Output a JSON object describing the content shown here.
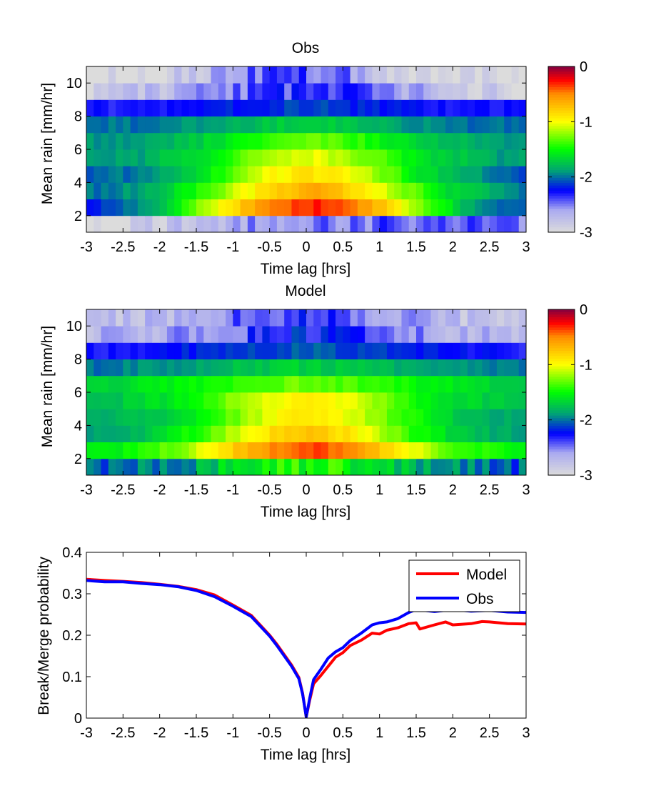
{
  "chart_data": [
    {
      "type": "heatmap",
      "title": "Obs",
      "xlabel": "Time lag [hrs]",
      "ylabel": "Mean rain [mm/hr]",
      "xlim": [
        -3,
        3
      ],
      "ylim": [
        1,
        11
      ],
      "xticks": [
        "-3",
        "-2.5",
        "-2",
        "-1.5",
        "-1",
        "-0.5",
        "0",
        "0.5",
        "1",
        "1.5",
        "2",
        "2.5",
        "3"
      ],
      "yticks": [
        "2",
        "4",
        "6",
        "8",
        "10"
      ],
      "row_centers": [
        1.5,
        2.5,
        3.5,
        4.5,
        5.5,
        6.5,
        7.5,
        8.5,
        9.5,
        10.5
      ],
      "column_count": 60,
      "row_values": [
        [
          -3.0,
          -3.0,
          -2.9,
          -2.8,
          -2.8,
          -2.7,
          -2.7,
          -2.6,
          -2.6,
          -2.6,
          -2.5,
          -2.5,
          -2.5,
          -2.4,
          -2.4,
          -2.4,
          -2.4,
          -2.5,
          -2.5,
          -2.5
        ],
        [
          -2.2,
          -2.1,
          -2.0,
          -1.8,
          -1.5,
          -1.2,
          -0.9,
          -0.7,
          -0.5,
          -0.35,
          -0.3,
          -0.4,
          -0.55,
          -0.8,
          -1.1,
          -1.4,
          -1.7,
          -1.9,
          -2.0,
          -2.1
        ],
        [
          -2.0,
          -2.0,
          -1.9,
          -1.8,
          -1.6,
          -1.4,
          -1.2,
          -1.0,
          -0.8,
          -0.7,
          -0.65,
          -0.75,
          -0.9,
          -1.1,
          -1.3,
          -1.5,
          -1.7,
          -1.8,
          -1.9,
          -2.0
        ],
        [
          -2.1,
          -2.0,
          -2.0,
          -1.9,
          -1.8,
          -1.6,
          -1.4,
          -1.2,
          -1.0,
          -0.9,
          -0.9,
          -0.95,
          -1.1,
          -1.3,
          -1.5,
          -1.7,
          -1.8,
          -1.9,
          -2.0,
          -2.1
        ],
        [
          -1.9,
          -1.9,
          -1.9,
          -1.8,
          -1.7,
          -1.6,
          -1.5,
          -1.3,
          -1.2,
          -1.1,
          -1.05,
          -1.15,
          -1.25,
          -1.4,
          -1.55,
          -1.65,
          -1.75,
          -1.8,
          -1.9,
          -1.9
        ],
        [
          -1.9,
          -1.9,
          -1.9,
          -1.85,
          -1.8,
          -1.7,
          -1.6,
          -1.5,
          -1.4,
          -1.3,
          -1.3,
          -1.35,
          -1.45,
          -1.55,
          -1.65,
          -1.75,
          -1.8,
          -1.85,
          -1.9,
          -1.9
        ],
        [
          -2.0,
          -2.0,
          -2.0,
          -2.0,
          -1.95,
          -1.9,
          -1.85,
          -1.8,
          -1.75,
          -1.7,
          -1.7,
          -1.75,
          -1.8,
          -1.85,
          -1.9,
          -1.95,
          -2.0,
          -2.0,
          -2.0,
          -2.0
        ],
        [
          -2.3,
          -2.3,
          -2.3,
          -2.3,
          -2.3,
          -2.25,
          -2.2,
          -2.2,
          -2.15,
          -2.1,
          -2.1,
          -2.15,
          -2.2,
          -2.2,
          -2.25,
          -2.3,
          -2.3,
          -2.3,
          -2.3,
          -2.3
        ],
        [
          -2.9,
          -2.85,
          -2.8,
          -2.75,
          -2.7,
          -2.6,
          -2.5,
          -2.45,
          -2.4,
          -2.35,
          -2.35,
          -2.4,
          -2.45,
          -2.55,
          -2.65,
          -2.75,
          -2.8,
          -2.85,
          -2.9,
          -2.95
        ],
        [
          -3.0,
          -3.0,
          -2.95,
          -2.9,
          -2.85,
          -2.75,
          -2.6,
          -2.5,
          -2.45,
          -2.4,
          -2.45,
          -2.5,
          -2.6,
          -2.85,
          -3.0,
          -3.0,
          -3.0,
          -3.0,
          -3.0,
          -3.0
        ]
      ],
      "colorbar": {
        "min": -3,
        "max": 0,
        "ticks": [
          "0",
          "-1",
          "-2",
          "-3"
        ]
      }
    },
    {
      "type": "heatmap",
      "title": "Model",
      "xlabel": "Time lag [hrs]",
      "ylabel": "Mean rain [mm/hr]",
      "xlim": [
        -3,
        3
      ],
      "ylim": [
        1,
        11
      ],
      "xticks": [
        "-3",
        "-2.5",
        "-2",
        "-1.5",
        "-1",
        "-0.5",
        "0",
        "0.5",
        "1",
        "1.5",
        "2",
        "2.5",
        "3"
      ],
      "yticks": [
        "2",
        "4",
        "6",
        "8",
        "10"
      ],
      "row_centers": [
        1.5,
        2.5,
        3.5,
        4.5,
        5.5,
        6.5,
        7.5,
        8.5,
        9.5,
        10.5
      ],
      "column_count": 60,
      "row_values": [
        [
          -2.1,
          -2.1,
          -2.0,
          -1.95,
          -1.9,
          -1.8,
          -1.7,
          -1.6,
          -1.5,
          -1.45,
          -1.45,
          -1.5,
          -1.6,
          -1.7,
          -1.8,
          -1.9,
          -1.95,
          -2.0,
          -2.05,
          -2.1
        ],
        [
          -1.6,
          -1.55,
          -1.5,
          -1.4,
          -1.25,
          -1.05,
          -0.85,
          -0.65,
          -0.5,
          -0.4,
          -0.38,
          -0.45,
          -0.6,
          -0.8,
          -1.0,
          -1.2,
          -1.35,
          -1.45,
          -1.5,
          -1.55
        ],
        [
          -1.9,
          -1.85,
          -1.8,
          -1.7,
          -1.55,
          -1.4,
          -1.2,
          -1.0,
          -0.85,
          -0.75,
          -0.75,
          -0.85,
          -1.0,
          -1.2,
          -1.4,
          -1.55,
          -1.7,
          -1.8,
          -1.85,
          -1.9
        ],
        [
          -1.9,
          -1.85,
          -1.8,
          -1.75,
          -1.65,
          -1.5,
          -1.35,
          -1.2,
          -1.05,
          -0.95,
          -0.95,
          -1.0,
          -1.15,
          -1.3,
          -1.45,
          -1.6,
          -1.7,
          -1.8,
          -1.85,
          -1.9
        ],
        [
          -1.8,
          -1.75,
          -1.7,
          -1.65,
          -1.55,
          -1.45,
          -1.3,
          -1.15,
          -1.0,
          -0.95,
          -0.95,
          -1.0,
          -1.15,
          -1.3,
          -1.45,
          -1.55,
          -1.65,
          -1.7,
          -1.75,
          -1.8
        ],
        [
          -1.7,
          -1.7,
          -1.65,
          -1.6,
          -1.55,
          -1.5,
          -1.45,
          -1.4,
          -1.35,
          -1.3,
          -1.3,
          -1.35,
          -1.4,
          -1.45,
          -1.5,
          -1.55,
          -1.6,
          -1.65,
          -1.7,
          -1.7
        ],
        [
          -2.0,
          -2.0,
          -1.95,
          -1.95,
          -1.9,
          -1.85,
          -1.8,
          -1.75,
          -1.75,
          -1.7,
          -1.7,
          -1.75,
          -1.75,
          -1.8,
          -1.85,
          -1.9,
          -1.95,
          -1.95,
          -2.0,
          -2.0
        ],
        [
          -2.3,
          -2.3,
          -2.25,
          -2.25,
          -2.2,
          -2.2,
          -2.15,
          -2.1,
          -2.1,
          -2.05,
          -2.05,
          -2.1,
          -2.1,
          -2.15,
          -2.2,
          -2.2,
          -2.25,
          -2.25,
          -2.3,
          -2.3
        ],
        [
          -2.75,
          -2.7,
          -2.7,
          -2.65,
          -2.6,
          -2.55,
          -2.45,
          -2.4,
          -2.3,
          -2.25,
          -2.25,
          -2.3,
          -2.4,
          -2.45,
          -2.55,
          -2.6,
          -2.65,
          -2.7,
          -2.7,
          -2.75
        ],
        [
          -2.85,
          -2.8,
          -2.75,
          -2.7,
          -2.65,
          -2.6,
          -2.5,
          -2.45,
          -2.4,
          -2.35,
          -2.35,
          -2.4,
          -2.45,
          -2.55,
          -2.6,
          -2.7,
          -2.75,
          -2.8,
          -2.85,
          -2.9
        ]
      ],
      "colorbar": {
        "min": -3,
        "max": 0,
        "ticks": [
          "0",
          "-1",
          "-2",
          "-3"
        ]
      }
    },
    {
      "type": "line",
      "title": "",
      "xlabel": "Time lag [hrs]",
      "ylabel": "Break/Merge probability",
      "xlim": [
        -3,
        3
      ],
      "ylim": [
        0,
        0.4
      ],
      "xticks": [
        "-3",
        "-2.5",
        "-2",
        "-1.5",
        "-1",
        "-0.5",
        "0",
        "0.5",
        "1",
        "1.5",
        "2",
        "2.5",
        "3"
      ],
      "yticks": [
        "0",
        "0.1",
        "0.2",
        "0.3",
        "0.4"
      ],
      "legend": "top-right",
      "series": [
        {
          "name": "Model",
          "color": "#ff0000",
          "x": [
            -3,
            -2.75,
            -2.5,
            -2.25,
            -2.0,
            -1.75,
            -1.5,
            -1.25,
            -1.0,
            -0.75,
            -0.5,
            -0.4,
            -0.3,
            -0.2,
            -0.1,
            -0.05,
            0.0,
            0.05,
            0.1,
            0.2,
            0.3,
            0.4,
            0.5,
            0.6,
            0.75,
            0.9,
            1.0,
            1.1,
            1.25,
            1.4,
            1.5,
            1.55,
            1.75,
            1.9,
            2.0,
            2.25,
            2.4,
            2.5,
            2.75,
            3.0
          ],
          "y": [
            0.335,
            0.332,
            0.33,
            0.327,
            0.323,
            0.318,
            0.31,
            0.297,
            0.273,
            0.248,
            0.2,
            0.178,
            0.153,
            0.128,
            0.098,
            0.06,
            0.003,
            0.045,
            0.083,
            0.103,
            0.125,
            0.147,
            0.158,
            0.175,
            0.188,
            0.205,
            0.203,
            0.212,
            0.218,
            0.228,
            0.23,
            0.215,
            0.225,
            0.232,
            0.225,
            0.228,
            0.233,
            0.232,
            0.228,
            0.227
          ]
        },
        {
          "name": "Obs",
          "color": "#0000ff",
          "x": [
            -3,
            -2.75,
            -2.5,
            -2.25,
            -2.0,
            -1.75,
            -1.5,
            -1.25,
            -1.0,
            -0.75,
            -0.5,
            -0.4,
            -0.3,
            -0.2,
            -0.1,
            -0.05,
            0.0,
            0.05,
            0.1,
            0.2,
            0.3,
            0.4,
            0.5,
            0.6,
            0.75,
            0.9,
            1.0,
            1.1,
            1.25,
            1.4,
            1.5,
            1.75,
            2.0,
            2.25,
            2.5,
            2.75,
            3.0
          ],
          "y": [
            0.332,
            0.329,
            0.329,
            0.325,
            0.322,
            0.317,
            0.308,
            0.293,
            0.27,
            0.245,
            0.198,
            0.175,
            0.15,
            0.125,
            0.095,
            0.058,
            0.003,
            0.05,
            0.093,
            0.118,
            0.145,
            0.16,
            0.17,
            0.187,
            0.205,
            0.225,
            0.23,
            0.232,
            0.24,
            0.255,
            0.262,
            0.257,
            0.262,
            0.258,
            0.26,
            0.256,
            0.255
          ]
        }
      ]
    }
  ]
}
